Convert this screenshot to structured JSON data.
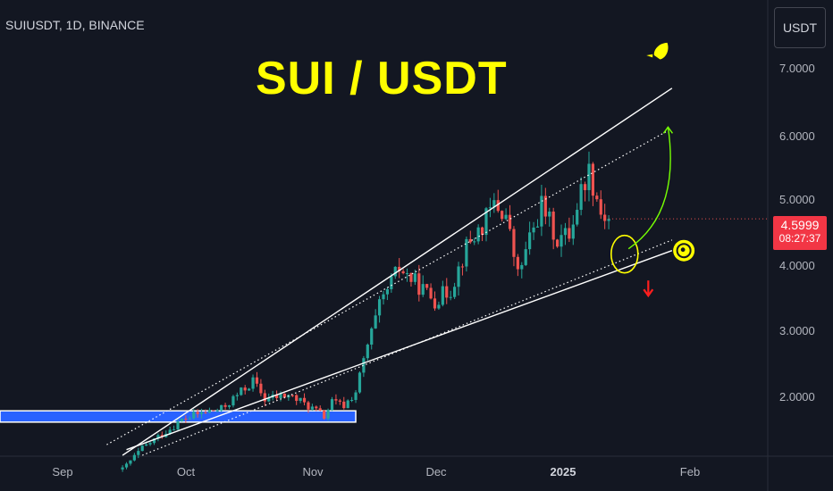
{
  "header": {
    "symbol": "SUIUSDT, 1D, BINANCE",
    "currency": "USDT"
  },
  "annotation_title": "SUI / USDT",
  "last_price": {
    "value": "4.5999",
    "countdown": "08:27:37",
    "color": "#f23645"
  },
  "colors": {
    "background": "#131722",
    "bull": "#26a69a",
    "bear": "#ef5350",
    "annotation": "#ffff00",
    "support_box": "#2962ff",
    "arrow_up": "#76ff03",
    "arrow_down": "#ff1e1e",
    "trendline": "#ffffff"
  },
  "icons": {
    "target": "rocket-icon",
    "breakdown": "down-arrow-icon",
    "marker": "circle-target-icon"
  },
  "chart_data": {
    "type": "candlestick",
    "title": "SUI / USDT",
    "ylim": [
      1.25,
      7.7
    ],
    "y_ticks": [
      "7.0000",
      "6.0000",
      "5.0000",
      "4.0000",
      "3.0000",
      "2.0000"
    ],
    "y_tick_values": [
      7,
      6,
      5,
      4,
      3,
      2
    ],
    "x_ticks": [
      "Sep",
      "Oct",
      "Nov",
      "Dec",
      "2025",
      "Feb"
    ],
    "x_tick_dates": [
      "2024-09-01",
      "2024-10-01",
      "2024-11-01",
      "2024-12-01",
      "2025-01-01",
      "2025-02-01"
    ],
    "x_range": [
      "2024-08-10",
      "2025-02-20"
    ],
    "closes": [
      [
        "2024-09-10",
        1.05
      ],
      [
        "2024-09-15",
        1.35
      ],
      [
        "2024-09-20",
        1.55
      ],
      [
        "2024-09-25",
        1.75
      ],
      [
        "2024-09-30",
        1.85
      ],
      [
        "2024-10-05",
        1.9
      ],
      [
        "2024-10-10",
        2.15
      ],
      [
        "2024-10-13",
        2.3
      ],
      [
        "2024-10-16",
        2.05
      ],
      [
        "2024-10-22",
        2.1
      ],
      [
        "2024-10-27",
        1.95
      ],
      [
        "2024-10-31",
        1.8
      ],
      [
        "2024-11-02",
        2.0
      ],
      [
        "2024-11-05",
        1.95
      ],
      [
        "2024-11-08",
        2.15
      ],
      [
        "2024-11-11",
        2.8
      ],
      [
        "2024-11-14",
        3.35
      ],
      [
        "2024-11-17",
        3.7
      ],
      [
        "2024-11-19",
        3.9
      ],
      [
        "2024-11-23",
        3.7
      ],
      [
        "2024-11-28",
        3.45
      ],
      [
        "2024-12-02",
        3.6
      ],
      [
        "2024-12-06",
        4.2
      ],
      [
        "2024-12-10",
        4.5
      ],
      [
        "2024-12-13",
        4.8
      ],
      [
        "2024-12-16",
        4.65
      ],
      [
        "2024-12-19",
        3.8
      ],
      [
        "2024-12-22",
        4.3
      ],
      [
        "2024-12-25",
        4.8
      ],
      [
        "2024-12-29",
        4.3
      ],
      [
        "2025-01-01",
        4.4
      ],
      [
        "2025-01-04",
        5.0
      ],
      [
        "2025-01-06",
        5.3
      ],
      [
        "2025-01-09",
        4.7
      ],
      [
        "2025-01-11",
        4.6
      ]
    ],
    "trendlines": [
      {
        "name": "upper-resistance",
        "style": "solid",
        "from": [
          "2024-09-10",
          1.25
        ],
        "to": [
          "2025-01-27",
          6.45
        ]
      },
      {
        "name": "upper-inner",
        "style": "dotted",
        "from": [
          "2024-09-06",
          1.4
        ],
        "to": [
          "2025-01-26",
          5.85
        ]
      },
      {
        "name": "lower-support-dotted",
        "style": "dotted",
        "from": [
          "2024-09-15",
          1.25
        ],
        "to": [
          "2025-01-27",
          4.3
        ]
      },
      {
        "name": "lower-support",
        "style": "solid",
        "from": [
          "2024-09-11",
          1.33
        ],
        "to": [
          "2025-01-27",
          4.15
        ]
      }
    ],
    "support_zone": {
      "x": [
        "2024-08-10",
        "2024-11-08"
      ],
      "y": [
        1.72,
        1.88
      ]
    },
    "breakout_target": 6.45,
    "breakdown_arrow_level": 3.6,
    "marker_level": 4.1
  }
}
